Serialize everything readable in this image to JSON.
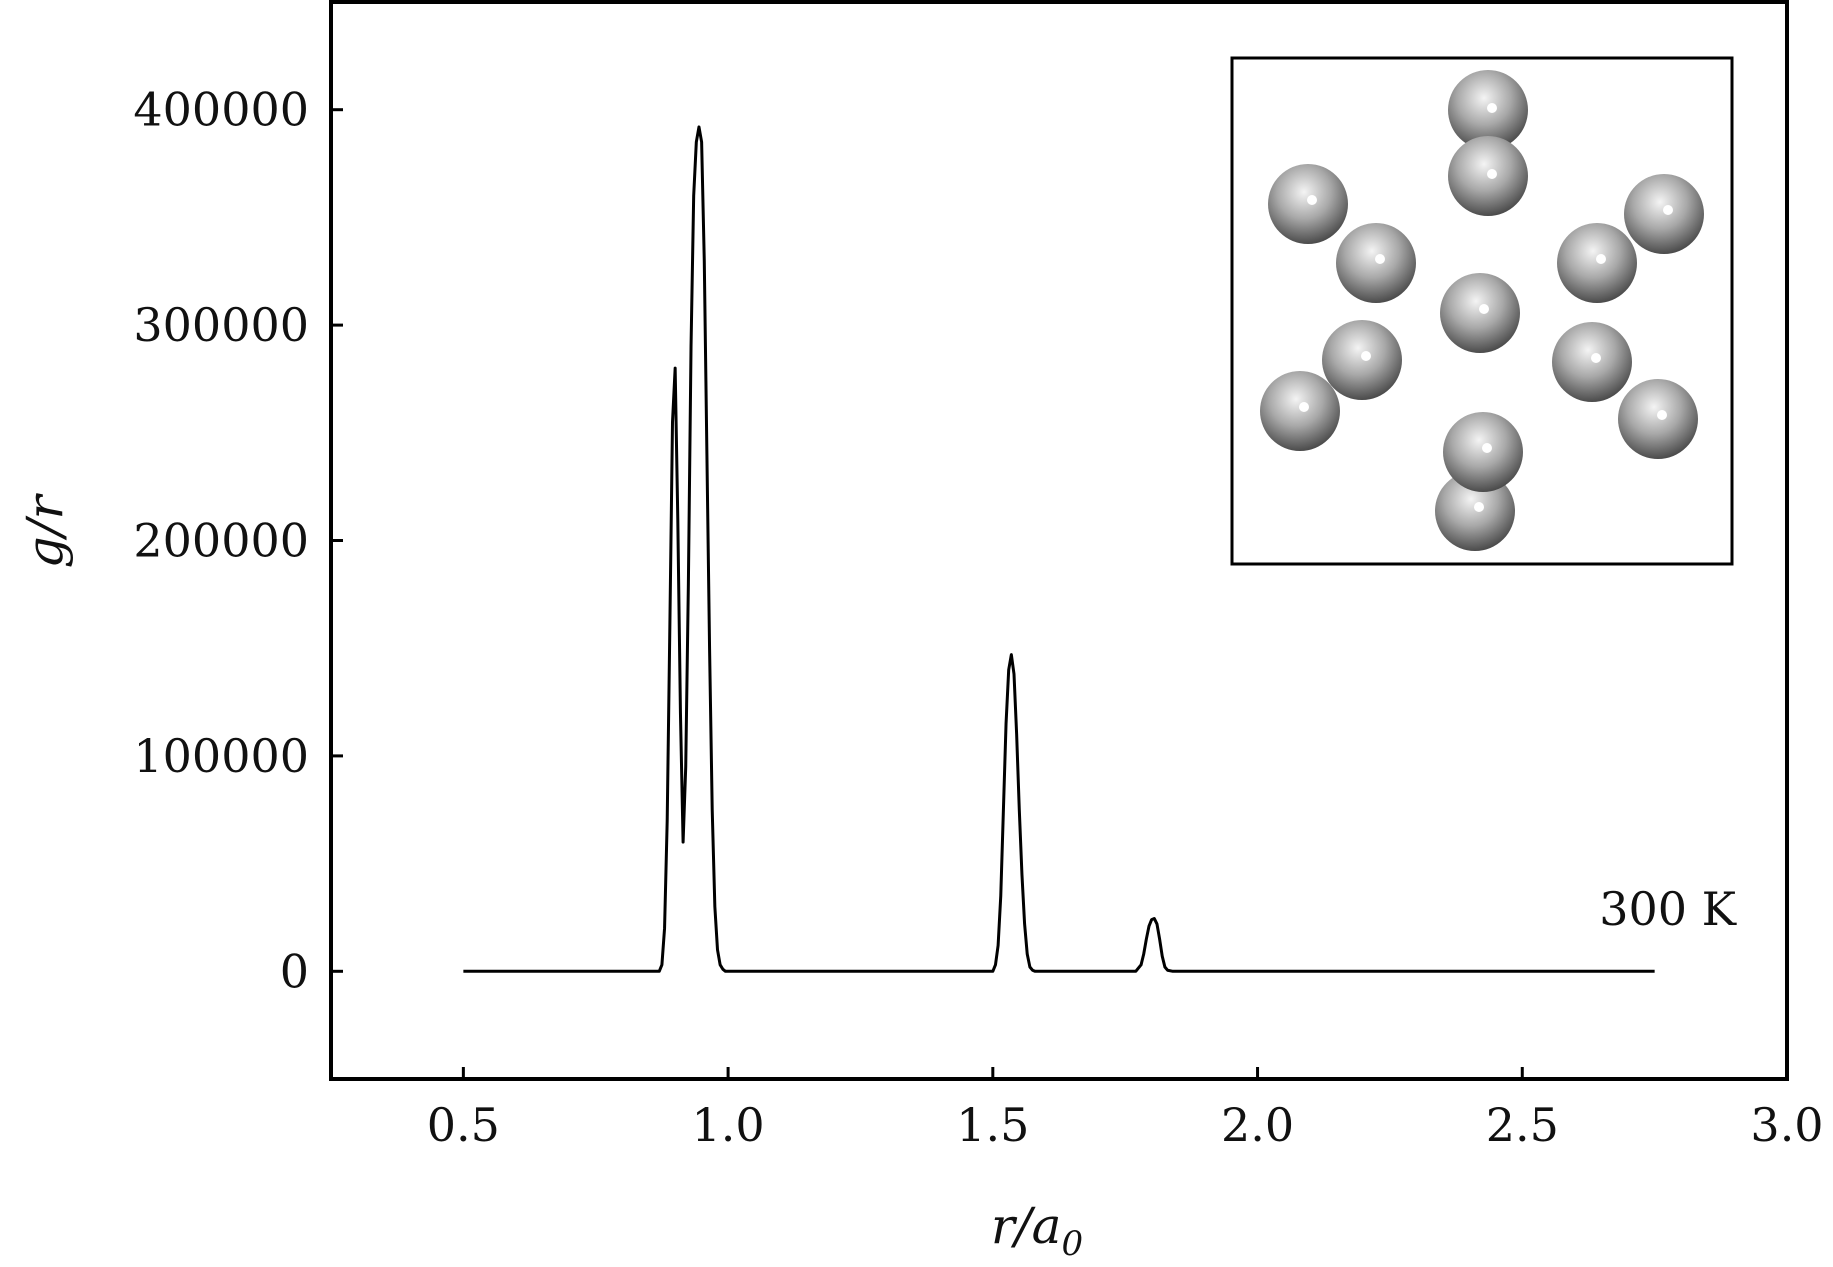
{
  "chart_data": {
    "type": "line",
    "title": "",
    "xlabel": "r/a₀",
    "ylabel": "g/r",
    "xlim": [
      0.25,
      3.0
    ],
    "ylim": [
      -50000,
      450000
    ],
    "xticks": [
      0.5,
      1.0,
      1.5,
      2.0,
      2.5,
      3.0
    ],
    "xtick_labels": [
      "0.5",
      "1.0",
      "1.5",
      "2.0",
      "2.5",
      "3.0"
    ],
    "yticks": [
      0,
      100000,
      200000,
      300000,
      400000
    ],
    "ytick_labels": [
      "0",
      "100000",
      "200000",
      "300000",
      "400000"
    ],
    "grid": false,
    "annotation": "300 K",
    "series": [
      {
        "color": "#000000",
        "x": [
          0.5,
          0.87,
          0.875,
          0.88,
          0.885,
          0.89,
          0.895,
          0.9,
          0.905,
          0.91,
          0.915,
          0.92,
          0.925,
          0.93,
          0.935,
          0.94,
          0.945,
          0.95,
          0.955,
          0.96,
          0.965,
          0.97,
          0.975,
          0.98,
          0.985,
          0.99,
          0.995,
          1.0,
          1.5,
          1.505,
          1.51,
          1.515,
          1.52,
          1.525,
          1.53,
          1.535,
          1.54,
          1.545,
          1.55,
          1.555,
          1.56,
          1.565,
          1.57,
          1.575,
          1.58,
          1.585,
          1.77,
          1.78,
          1.785,
          1.79,
          1.795,
          1.8,
          1.805,
          1.81,
          1.815,
          1.82,
          1.825,
          1.83,
          1.84,
          2.75
        ],
        "y": [
          0,
          0,
          3000,
          20000,
          70000,
          160000,
          255000,
          280000,
          210000,
          120000,
          60000,
          95000,
          180000,
          290000,
          360000,
          385000,
          392000,
          385000,
          330000,
          240000,
          150000,
          75000,
          30000,
          10000,
          3000,
          1000,
          0,
          0,
          0,
          3000,
          12000,
          35000,
          75000,
          115000,
          140000,
          147000,
          138000,
          110000,
          75000,
          45000,
          22000,
          8000,
          2000,
          500,
          0,
          0,
          0,
          3000,
          8000,
          15000,
          21000,
          24000,
          24500,
          22000,
          15000,
          7000,
          2000,
          500,
          0,
          0
        ]
      }
    ]
  },
  "inset": {
    "bg_color": "#ffffff",
    "border_color": "#000000",
    "atom_color": "#9a9a9a"
  }
}
